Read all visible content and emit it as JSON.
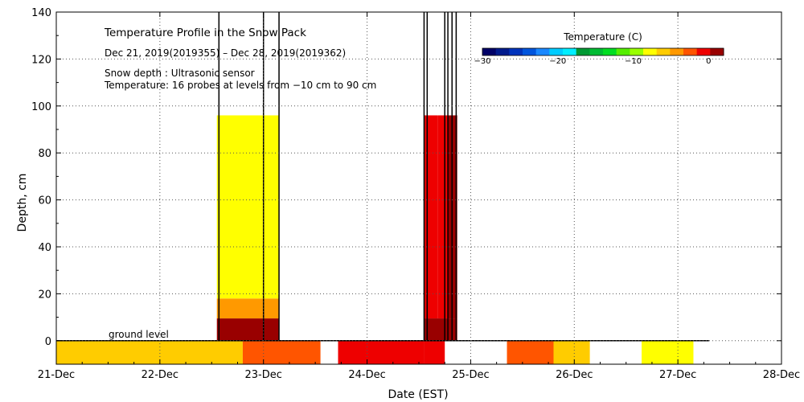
{
  "chart_data": {
    "type": "heatmap",
    "title": "Temperature Profile in the Snow Pack",
    "subtitle": "Dec 21, 2019(2019355) – Dec 28, 2019(2019362)",
    "notes": [
      "Snow depth : Ultrasonic sensor",
      "Temperature: 16 probes at levels from −10 cm to 90 cm"
    ],
    "xlabel": "Date (EST)",
    "ylabel": "Depth, cm",
    "x_ticks": [
      "21-Dec",
      "22-Dec",
      "23-Dec",
      "24-Dec",
      "25-Dec",
      "26-Dec",
      "27-Dec",
      "28-Dec"
    ],
    "xlim": [
      0,
      7
    ],
    "ylim": [
      -10,
      140
    ],
    "y_ticks": [
      0,
      20,
      40,
      60,
      80,
      100,
      120,
      140
    ],
    "grid": true,
    "ground_label": "ground level",
    "colorbar": {
      "title": "Temperature (C)",
      "range": [
        -30,
        2
      ],
      "ticks": [
        -30,
        -20,
        -10,
        0
      ],
      "colors": [
        "#000066",
        "#001a8c",
        "#0033bb",
        "#0055dd",
        "#1a88ff",
        "#00ccff",
        "#00eeff",
        "#009933",
        "#00bb33",
        "#00dd22",
        "#55ee00",
        "#99ff00",
        "#ffff00",
        "#ffcc00",
        "#ff9900",
        "#ff5500",
        "#ee0000",
        "#990000"
      ]
    },
    "blocks": [
      {
        "x": [
          0.0,
          1.8
        ],
        "y": [
          -10,
          0
        ],
        "temp": -6.5
      },
      {
        "x": [
          1.8,
          2.55
        ],
        "y": [
          -10,
          0
        ],
        "temp": -2.5
      },
      {
        "x": [
          2.55,
          2.72
        ],
        "y": [
          -10,
          0
        ],
        "temp": null
      },
      {
        "x": [
          2.72,
          3.55
        ],
        "y": [
          -10,
          0
        ],
        "temp": -1.5
      },
      {
        "x": [
          3.55,
          3.75
        ],
        "y": [
          -10,
          0
        ],
        "temp": -0.5
      },
      {
        "x": [
          3.75,
          4.35
        ],
        "y": [
          -10,
          0
        ],
        "temp": null
      },
      {
        "x": [
          4.35,
          4.8
        ],
        "y": [
          -10,
          0
        ],
        "temp": -2.0
      },
      {
        "x": [
          4.8,
          5.15
        ],
        "y": [
          -10,
          0
        ],
        "temp": -5.5
      },
      {
        "x": [
          5.15,
          5.65
        ],
        "y": [
          -10,
          0
        ],
        "temp": null
      },
      {
        "x": [
          5.65,
          6.15
        ],
        "y": [
          -10,
          0
        ],
        "temp": -7.5
      },
      {
        "x": [
          1.55,
          2.15
        ],
        "y": [
          0,
          9.5
        ],
        "temp": 1.0
      },
      {
        "x": [
          1.55,
          2.15
        ],
        "y": [
          9.5,
          18
        ],
        "temp": -4.5
      },
      {
        "x": [
          1.55,
          2.15
        ],
        "y": [
          18,
          96
        ],
        "temp": -7.5
      },
      {
        "x": [
          3.55,
          3.87
        ],
        "y": [
          0,
          9.5
        ],
        "temp": 1.0
      },
      {
        "x": [
          3.55,
          3.68
        ],
        "y": [
          9.5,
          96
        ],
        "temp": -1.5
      },
      {
        "x": [
          3.68,
          3.78
        ],
        "y": [
          9.5,
          96
        ],
        "temp": 0.0
      },
      {
        "x": [
          3.78,
          3.87
        ],
        "y": [
          9.5,
          96
        ],
        "temp": 1.0
      }
    ],
    "snow_depth_spikes": [
      1.57,
      2.0,
      2.15,
      3.55,
      3.58,
      3.75,
      3.78,
      3.82,
      3.86
    ]
  }
}
